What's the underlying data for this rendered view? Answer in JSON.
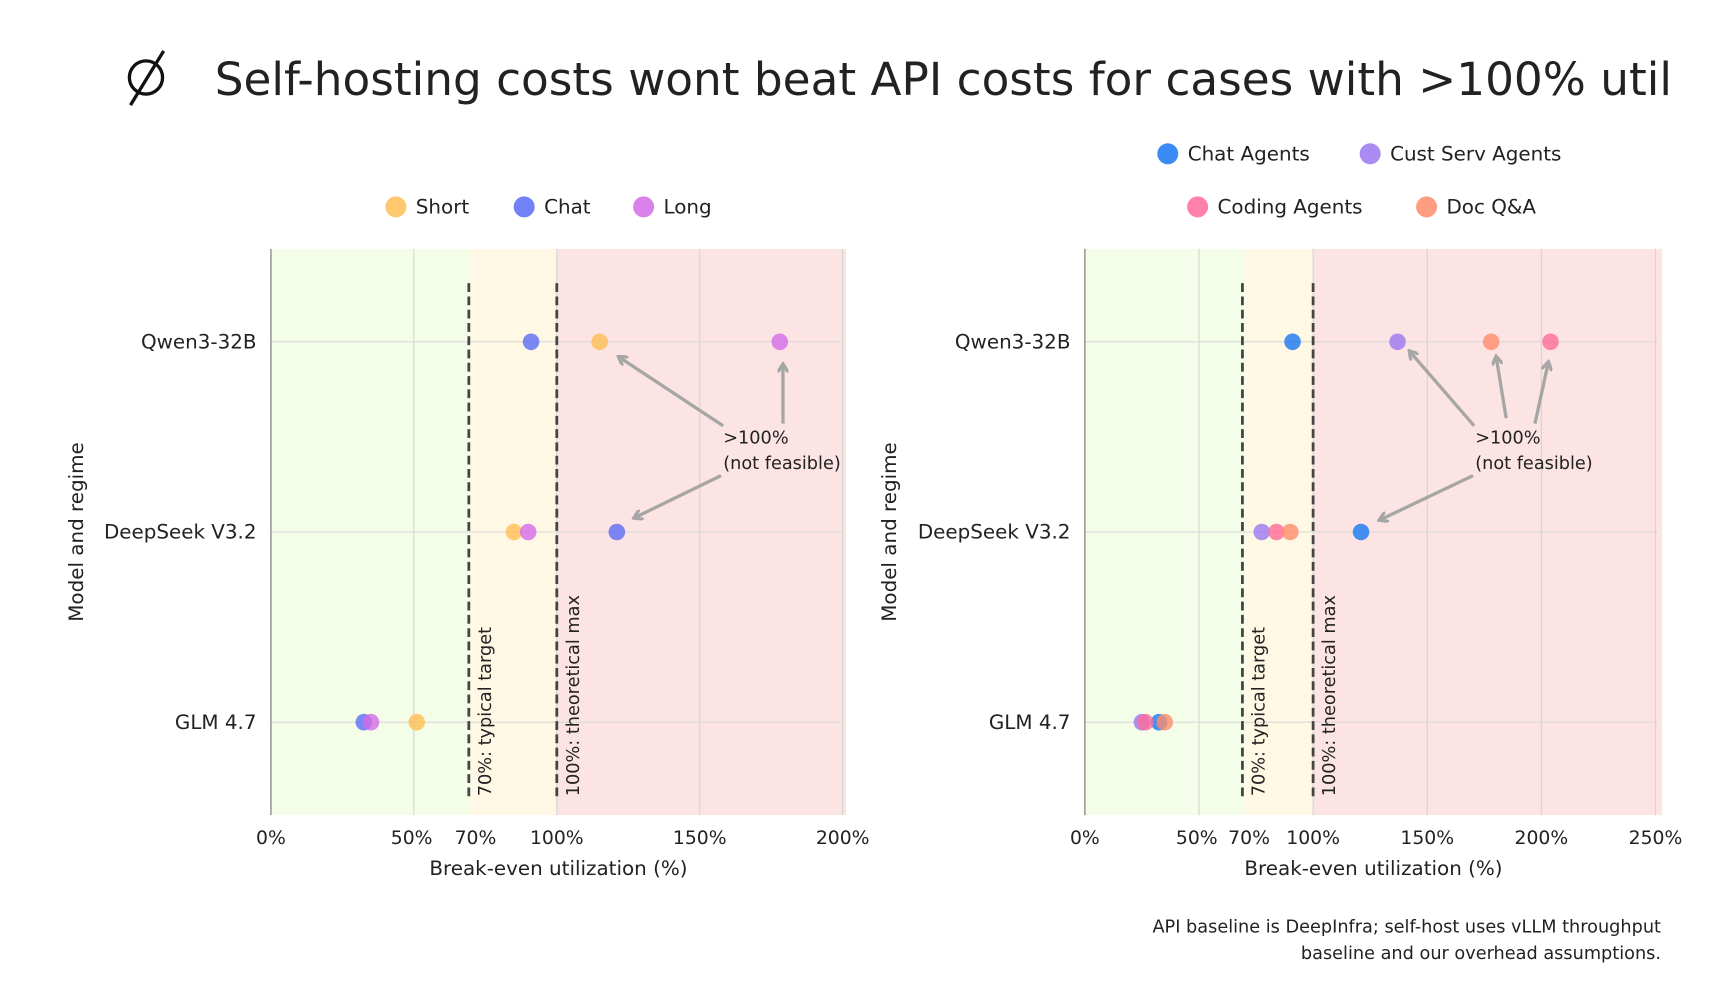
{
  "title": "Self-hosting costs wont beat API costs for cases with >100% util",
  "logo_icon": "slashed-circle-logo",
  "footnote": [
    "API baseline is DeepInfra; self-host uses vLLM throughput",
    "baseline and our overhead assumptions."
  ],
  "zone_colors": {
    "below_target": "#F4FDE8",
    "target_to_max": "#FFF8E5",
    "not_feasible": "#FDE4E4"
  },
  "chart_data": [
    {
      "type": "scatter",
      "xlabel": "Break-even utilization (%)",
      "ylabel": "Model and regime",
      "xlim": [
        0,
        202
      ],
      "xticks": [
        0,
        50,
        70,
        100,
        150,
        200
      ],
      "xtick_labels": [
        "0%",
        "50%",
        "70%",
        "100%",
        "150%",
        "200%"
      ],
      "categories": [
        "Qwen3-32B",
        "DeepSeek V3.2",
        "GLM 4.7"
      ],
      "grid": true,
      "legend_placement": "top",
      "reference_lines": [
        {
          "x": 70,
          "label": "70%: typical target"
        },
        {
          "x": 100,
          "label": "100%: theoretical max"
        }
      ],
      "annotation": [
        ">100%",
        "(not feasible)"
      ],
      "series": [
        {
          "name": "Short",
          "color": "#FFBE55",
          "values": [
            115,
            85,
            51
          ]
        },
        {
          "name": "Chat",
          "color": "#5B6CF5",
          "values": [
            91,
            121,
            32.5
          ]
        },
        {
          "name": "Long",
          "color": "#D46BE8",
          "values": [
            178,
            90,
            35
          ]
        }
      ]
    },
    {
      "type": "scatter",
      "xlabel": "Break-even utilization (%)",
      "ylabel": "Model and regime",
      "xlim": [
        0,
        252
      ],
      "xticks": [
        0,
        50,
        70,
        100,
        150,
        200,
        250
      ],
      "xtick_labels": [
        "0%",
        "50%",
        "70%",
        "100%",
        "150%",
        "200%",
        "250%"
      ],
      "categories": [
        "Qwen3-32B",
        "DeepSeek V3.2",
        "GLM 4.7"
      ],
      "grid": true,
      "legend_placement": "top",
      "reference_lines": [
        {
          "x": 70,
          "label": "70%: typical target"
        },
        {
          "x": 100,
          "label": "100%: theoretical max"
        }
      ],
      "annotation": [
        ">100%",
        "(not feasible)"
      ],
      "series": [
        {
          "name": "Chat Agents",
          "color": "#1877F2",
          "values": [
            91,
            121,
            32.5
          ]
        },
        {
          "name": "Cust Serv Agents",
          "color": "#9B77F0",
          "values": [
            137,
            77.5,
            25
          ]
        },
        {
          "name": "Coding Agents",
          "color": "#FF6B9A",
          "values": [
            204,
            84,
            26.5
          ]
        },
        {
          "name": "Doc Q&A",
          "color": "#FF8C6B",
          "values": [
            178,
            90,
            35
          ]
        }
      ]
    }
  ]
}
